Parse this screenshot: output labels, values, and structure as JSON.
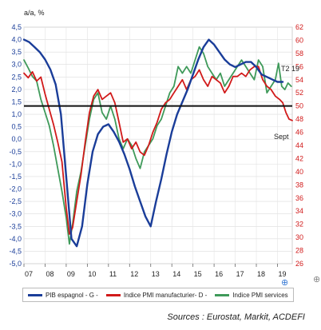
{
  "chart_data": {
    "type": "line",
    "left_axis_unit": "a/a, %",
    "left_ylim": [
      -5.0,
      4.5
    ],
    "left_ticks": [
      "4,5",
      "4,0",
      "3,5",
      "3,0",
      "2,5",
      "2,0",
      "1,5",
      "1,0",
      "0,5",
      "0,0",
      "-0,5",
      "-1,0",
      "-1,5",
      "-2,0",
      "-2,5",
      "-3,0",
      "-3,5",
      "-4,0",
      "-4,5",
      "-5,0"
    ],
    "right_ylim": [
      26,
      62
    ],
    "right_ticks": [
      "62",
      "60",
      "58",
      "56",
      "54",
      "52",
      "50",
      "48",
      "46",
      "44",
      "42",
      "40",
      "38",
      "36",
      "34",
      "32",
      "30",
      "28",
      "26"
    ],
    "x_ticks": [
      "07",
      "08",
      "09",
      "10",
      "11",
      "12",
      "13",
      "14",
      "15",
      "16",
      "17",
      "18",
      "19"
    ],
    "threshold_right": 50,
    "annotations": [
      "T2 19",
      "Sept"
    ],
    "series": [
      {
        "name": "PIB espagnol - G -",
        "axis": "left",
        "color": "#1a3d99",
        "points": [
          [
            2007.0,
            4.0
          ],
          [
            2007.25,
            3.9
          ],
          [
            2007.5,
            3.7
          ],
          [
            2007.75,
            3.5
          ],
          [
            2008.0,
            3.2
          ],
          [
            2008.25,
            2.8
          ],
          [
            2008.5,
            2.2
          ],
          [
            2008.75,
            1.0
          ],
          [
            2009.0,
            -1.5
          ],
          [
            2009.25,
            -4.0
          ],
          [
            2009.5,
            -4.3
          ],
          [
            2009.75,
            -3.5
          ],
          [
            2010.0,
            -1.8
          ],
          [
            2010.25,
            -0.5
          ],
          [
            2010.5,
            0.2
          ],
          [
            2010.75,
            0.5
          ],
          [
            2011.0,
            0.6
          ],
          [
            2011.25,
            0.3
          ],
          [
            2011.5,
            -0.1
          ],
          [
            2011.75,
            -0.6
          ],
          [
            2012.0,
            -1.2
          ],
          [
            2012.25,
            -1.9
          ],
          [
            2012.5,
            -2.5
          ],
          [
            2012.75,
            -3.1
          ],
          [
            2013.0,
            -3.5
          ],
          [
            2013.25,
            -2.5
          ],
          [
            2013.5,
            -1.6
          ],
          [
            2013.75,
            -0.6
          ],
          [
            2014.0,
            0.3
          ],
          [
            2014.25,
            1.0
          ],
          [
            2014.5,
            1.5
          ],
          [
            2014.75,
            2.0
          ],
          [
            2015.0,
            2.6
          ],
          [
            2015.25,
            3.2
          ],
          [
            2015.5,
            3.7
          ],
          [
            2015.75,
            4.0
          ],
          [
            2016.0,
            3.8
          ],
          [
            2016.25,
            3.5
          ],
          [
            2016.5,
            3.2
          ],
          [
            2016.75,
            3.0
          ],
          [
            2017.0,
            2.9
          ],
          [
            2017.25,
            3.0
          ],
          [
            2017.5,
            3.1
          ],
          [
            2017.75,
            3.1
          ],
          [
            2018.0,
            2.9
          ],
          [
            2018.25,
            2.6
          ],
          [
            2018.5,
            2.5
          ],
          [
            2018.75,
            2.4
          ],
          [
            2019.0,
            2.3
          ],
          [
            2019.25,
            2.3
          ]
        ]
      },
      {
        "name": "Indice PMI manufacturier- D -",
        "axis": "right",
        "color": "#d11a1a",
        "points": [
          [
            2007.0,
            55
          ],
          [
            2007.2,
            54.3
          ],
          [
            2007.4,
            55.2
          ],
          [
            2007.6,
            53.8
          ],
          [
            2007.8,
            54.4
          ],
          [
            2008.0,
            51.8
          ],
          [
            2008.2,
            49.5
          ],
          [
            2008.4,
            47.2
          ],
          [
            2008.6,
            44.5
          ],
          [
            2008.8,
            41.5
          ],
          [
            2009.0,
            34.5
          ],
          [
            2009.15,
            30.5
          ],
          [
            2009.3,
            31.5
          ],
          [
            2009.5,
            35.5
          ],
          [
            2009.7,
            39.5
          ],
          [
            2009.9,
            44.5
          ],
          [
            2010.1,
            49
          ],
          [
            2010.3,
            51.5
          ],
          [
            2010.5,
            52.5
          ],
          [
            2010.7,
            51
          ],
          [
            2010.9,
            51.5
          ],
          [
            2011.1,
            52
          ],
          [
            2011.3,
            50.5
          ],
          [
            2011.5,
            47.5
          ],
          [
            2011.7,
            44.5
          ],
          [
            2011.9,
            45
          ],
          [
            2012.1,
            43.5
          ],
          [
            2012.3,
            44.5
          ],
          [
            2012.5,
            43
          ],
          [
            2012.7,
            42.5
          ],
          [
            2012.9,
            44
          ],
          [
            2013.1,
            46
          ],
          [
            2013.3,
            47.5
          ],
          [
            2013.5,
            49.5
          ],
          [
            2013.7,
            50.5
          ],
          [
            2013.9,
            51
          ],
          [
            2014.1,
            52
          ],
          [
            2014.3,
            53
          ],
          [
            2014.5,
            54
          ],
          [
            2014.7,
            52.5
          ],
          [
            2014.9,
            54
          ],
          [
            2015.1,
            54.5
          ],
          [
            2015.3,
            55.5
          ],
          [
            2015.5,
            54
          ],
          [
            2015.7,
            53
          ],
          [
            2015.9,
            54.5
          ],
          [
            2016.1,
            54
          ],
          [
            2016.3,
            53.5
          ],
          [
            2016.5,
            52
          ],
          [
            2016.7,
            53
          ],
          [
            2016.9,
            54.5
          ],
          [
            2017.1,
            54.5
          ],
          [
            2017.3,
            55
          ],
          [
            2017.5,
            54.5
          ],
          [
            2017.7,
            55.5
          ],
          [
            2017.9,
            56
          ],
          [
            2018.1,
            56
          ],
          [
            2018.3,
            54
          ],
          [
            2018.5,
            53
          ],
          [
            2018.7,
            52.5
          ],
          [
            2018.9,
            51.5
          ],
          [
            2019.1,
            51
          ],
          [
            2019.25,
            50.5
          ],
          [
            2019.4,
            49
          ],
          [
            2019.55,
            48
          ],
          [
            2019.7,
            47.8
          ]
        ]
      },
      {
        "name": "Indice PMI services",
        "axis": "right",
        "color": "#3f9a5a",
        "points": [
          [
            2007.0,
            57
          ],
          [
            2007.2,
            55.8
          ],
          [
            2007.4,
            54.5
          ],
          [
            2007.6,
            53.8
          ],
          [
            2007.8,
            51
          ],
          [
            2008.0,
            49
          ],
          [
            2008.2,
            47
          ],
          [
            2008.4,
            44
          ],
          [
            2008.6,
            40.5
          ],
          [
            2008.8,
            37
          ],
          [
            2009.0,
            33
          ],
          [
            2009.15,
            29
          ],
          [
            2009.3,
            32
          ],
          [
            2009.5,
            37
          ],
          [
            2009.7,
            40
          ],
          [
            2009.9,
            44
          ],
          [
            2010.1,
            48
          ],
          [
            2010.3,
            51
          ],
          [
            2010.5,
            52
          ],
          [
            2010.7,
            49
          ],
          [
            2010.9,
            48
          ],
          [
            2011.1,
            50
          ],
          [
            2011.3,
            48
          ],
          [
            2011.5,
            45
          ],
          [
            2011.7,
            43.5
          ],
          [
            2011.9,
            45
          ],
          [
            2012.1,
            44
          ],
          [
            2012.3,
            42
          ],
          [
            2012.5,
            40.5
          ],
          [
            2012.7,
            43
          ],
          [
            2012.9,
            44
          ],
          [
            2013.1,
            45
          ],
          [
            2013.3,
            47
          ],
          [
            2013.5,
            48
          ],
          [
            2013.7,
            50
          ],
          [
            2013.9,
            52
          ],
          [
            2014.1,
            53
          ],
          [
            2014.3,
            56
          ],
          [
            2014.5,
            55
          ],
          [
            2014.7,
            56
          ],
          [
            2014.9,
            55
          ],
          [
            2015.1,
            57
          ],
          [
            2015.3,
            59
          ],
          [
            2015.5,
            58
          ],
          [
            2015.7,
            56
          ],
          [
            2015.9,
            55
          ],
          [
            2016.1,
            54
          ],
          [
            2016.3,
            55
          ],
          [
            2016.5,
            53
          ],
          [
            2016.7,
            54
          ],
          [
            2016.9,
            55
          ],
          [
            2017.1,
            56
          ],
          [
            2017.3,
            57
          ],
          [
            2017.5,
            56
          ],
          [
            2017.7,
            55
          ],
          [
            2017.9,
            54
          ],
          [
            2018.1,
            57
          ],
          [
            2018.3,
            56
          ],
          [
            2018.5,
            52
          ],
          [
            2018.7,
            53
          ],
          [
            2018.9,
            54
          ],
          [
            2019.05,
            56.5
          ],
          [
            2019.2,
            53
          ],
          [
            2019.35,
            52.5
          ],
          [
            2019.5,
            53.5
          ],
          [
            2019.65,
            53
          ]
        ]
      }
    ]
  },
  "source": "Sources : Eurostat, Markit, ACDEFI"
}
